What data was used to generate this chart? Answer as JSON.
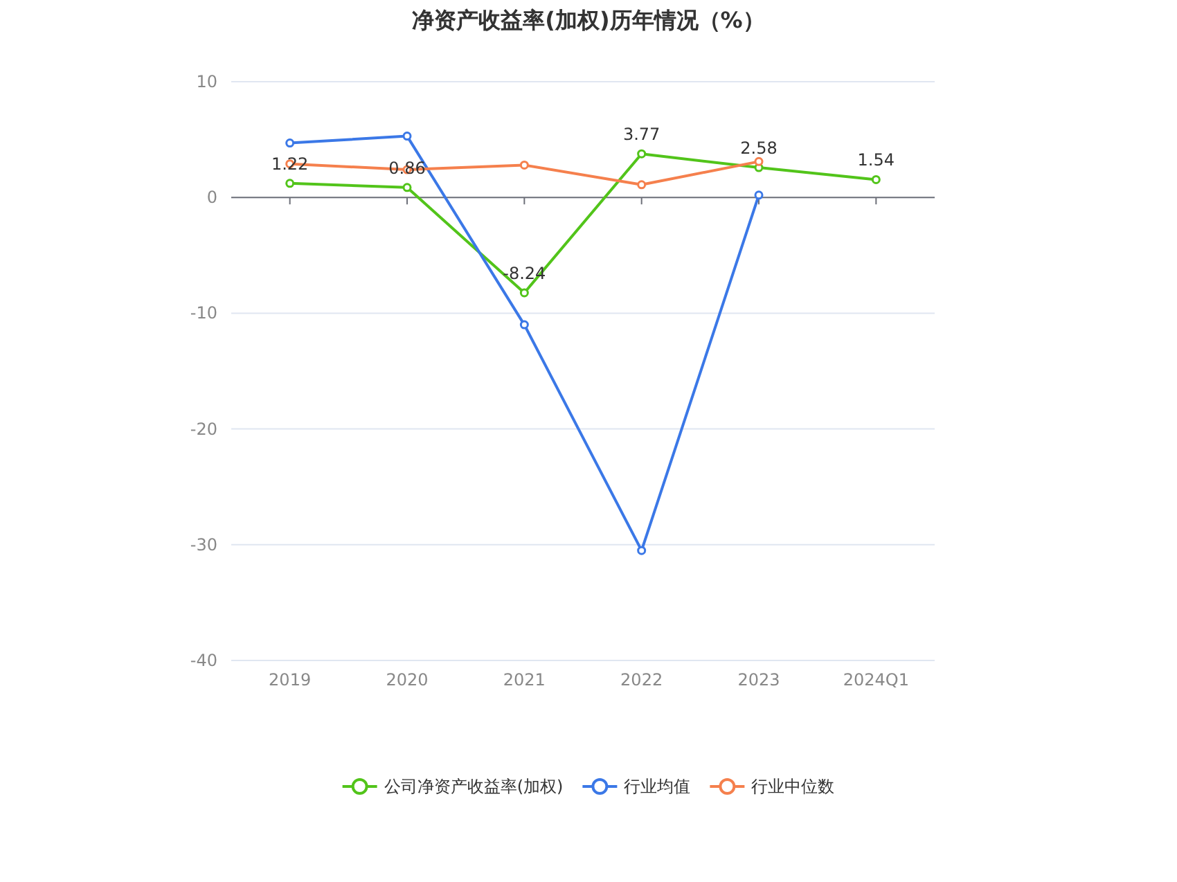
{
  "chart_data": {
    "type": "line",
    "title": "净资产收益率(加权)历年情况（%）",
    "categories": [
      "2019",
      "2020",
      "2021",
      "2022",
      "2023",
      "2024Q1"
    ],
    "series": [
      {
        "name": "公司净资产收益率(加权)",
        "color": "#52c41a",
        "values": [
          1.22,
          0.86,
          -8.24,
          3.77,
          2.58,
          1.54
        ],
        "value_labels": [
          "1.22",
          "0.86",
          "-8.24",
          "3.77",
          "2.58",
          "1.54"
        ]
      },
      {
        "name": "行业均值",
        "color": "#3b78e7",
        "values": [
          4.7,
          5.3,
          -11.0,
          -30.5,
          0.2,
          null
        ]
      },
      {
        "name": "行业中位数",
        "color": "#f5804d",
        "values": [
          2.9,
          2.4,
          2.8,
          1.1,
          3.1,
          null
        ]
      }
    ],
    "ylim": [
      -40,
      10
    ],
    "yticks": [
      -40,
      -30,
      -20,
      -10,
      0,
      10
    ],
    "grid": "y",
    "legend": "bottom",
    "marker": "circle",
    "line_style": "solid"
  }
}
